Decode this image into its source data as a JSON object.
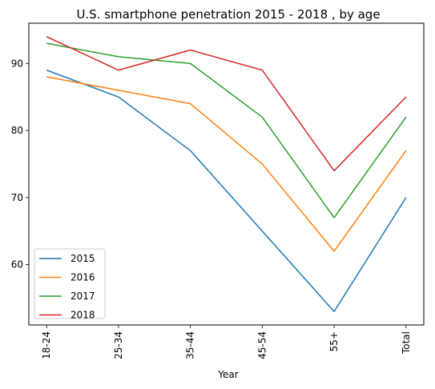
{
  "chart_data": {
    "type": "line",
    "title": "U.S. smartphone penetration 2015 - 2018 , by age",
    "xlabel": "Year",
    "ylabel": "",
    "categories": [
      "18-24",
      "25-34",
      "35-44",
      "45-54",
      "55+",
      "Total"
    ],
    "yticks": [
      60,
      70,
      80,
      90
    ],
    "ylim": [
      51,
      96
    ],
    "grid": false,
    "legend_position": "lower-left",
    "series": [
      {
        "name": "2015",
        "color": "#1f77b4",
        "values": [
          89,
          85,
          77,
          65,
          53,
          70
        ]
      },
      {
        "name": "2016",
        "color": "#ff7f0e",
        "values": [
          88,
          86,
          84,
          75,
          62,
          77
        ]
      },
      {
        "name": "2017",
        "color": "#2ca02c",
        "values": [
          93,
          91,
          90,
          82,
          67,
          82
        ]
      },
      {
        "name": "2018",
        "color": "#d62728",
        "values": [
          94,
          89,
          92,
          89,
          74,
          85
        ]
      }
    ]
  }
}
